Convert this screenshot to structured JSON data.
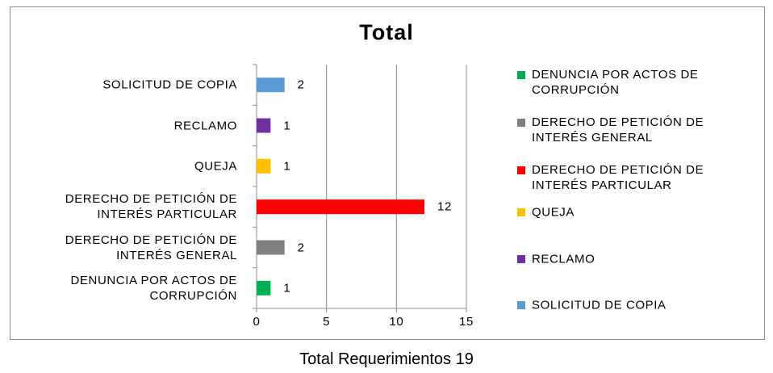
{
  "chart_data": {
    "type": "bar",
    "orientation": "horizontal",
    "title": "Total",
    "categories": [
      "DENUNCIA POR ACTOS DE CORRUPCIÓN",
      "DERECHO DE PETICIÓN DE INTERÉS GENERAL",
      "DERECHO DE PETICIÓN DE INTERÉS PARTICULAR",
      "QUEJA",
      "RECLAMO",
      "SOLICITUD DE COPIA"
    ],
    "values": [
      1,
      2,
      12,
      1,
      1,
      2
    ],
    "colors": [
      "#00b050",
      "#7f7f7f",
      "#ff0000",
      "#ffc000",
      "#7030a0",
      "#5b9bd5"
    ],
    "xlim": [
      0,
      15
    ],
    "xticks": [
      0,
      5,
      10,
      15
    ],
    "grid": true,
    "legend": "right",
    "caption": "Total Requerimientos 19"
  }
}
